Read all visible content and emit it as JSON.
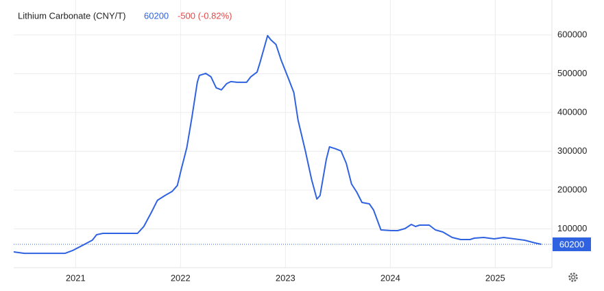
{
  "chart_data": {
    "type": "line",
    "title": "Lithium Carbonate (CNY/T)",
    "change": "-500 (-0.82%)",
    "color": "#2e62e0",
    "x": [
      2020.41,
      2020.51,
      2020.9,
      2020.97,
      2021.07,
      2021.16,
      2021.2,
      2021.26,
      2021.33,
      2021.59,
      2021.65,
      2021.72,
      2021.78,
      2021.85,
      2021.92,
      2021.97,
      2022.01,
      2022.06,
      2022.11,
      2022.16,
      2022.18,
      2022.24,
      2022.29,
      2022.34,
      2022.39,
      2022.44,
      2022.48,
      2022.54,
      2022.63,
      2022.67,
      2022.73,
      2022.76,
      2022.83,
      2022.86,
      2022.91,
      2022.96,
      2023.03,
      2023.08,
      2023.12,
      2023.19,
      2023.25,
      2023.3,
      2023.33,
      2023.39,
      2023.42,
      2023.48,
      2023.53,
      2023.58,
      2023.63,
      2023.68,
      2023.73,
      2023.8,
      2023.84,
      2023.91,
      2024.01,
      2024.07,
      2024.14,
      2024.2,
      2024.24,
      2024.28,
      2024.37,
      2024.43,
      2024.5,
      2024.59,
      2024.67,
      2024.76,
      2024.8,
      2024.89,
      2024.99,
      2025.08,
      2025.18,
      2025.28,
      2025.38,
      2025.44
    ],
    "values": [
      40700,
      37000,
      37000,
      44000,
      58000,
      71000,
      85000,
      88500,
      88500,
      88500,
      106000,
      141600,
      173500,
      185800,
      196500,
      212000,
      256600,
      309700,
      389400,
      478000,
      495600,
      500900,
      492000,
      463700,
      458400,
      474300,
      479600,
      477900,
      477900,
      492000,
      504400,
      531000,
      598200,
      587600,
      575200,
      534500,
      486700,
      451300,
      380500,
      300900,
      226500,
      177000,
      185800,
      279600,
      311500,
      306200,
      300900,
      269000,
      215900,
      194700,
      168100,
      164600,
      148700,
      97300,
      95600,
      95600,
      100900,
      111500,
      106200,
      109700,
      109700,
      97300,
      92000,
      77900,
      72600,
      72600,
      76100,
      77900,
      74300,
      77900,
      74300,
      70800,
      63700,
      60200
    ],
    "xlim": [
      2020.41,
      2025.54
    ],
    "xticks": [
      2021,
      2022,
      2023,
      2024,
      2025
    ],
    "ylim": [
      0,
      690000
    ],
    "yticks": [
      100000,
      200000,
      300000,
      400000,
      500000,
      600000
    ],
    "grid": true
  }
}
